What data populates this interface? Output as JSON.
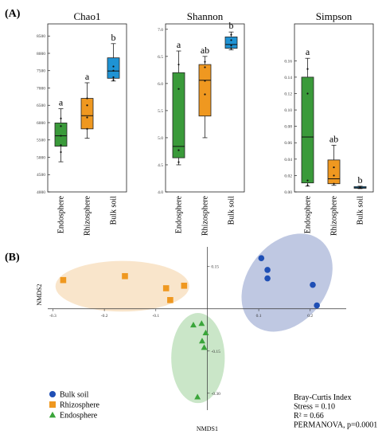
{
  "panel_a_label": "(A)",
  "panel_b_label": "(B)",
  "colors": {
    "endosphere": "#3a9a3a",
    "rhizosphere": "#ef9820",
    "bulk": "#1f93d4"
  },
  "chart_data": [
    {
      "type": "box",
      "title": "Chao1",
      "categories": [
        "Endosphere",
        "Rhizosphere",
        "Bulk soil"
      ],
      "yticks": [
        4000,
        4500,
        5000,
        5500,
        6000,
        6500,
        7000,
        7500,
        8000,
        8500
      ],
      "ylim": [
        4000,
        8850
      ],
      "boxes": [
        {
          "whisker_low": 4870,
          "q1": 5320,
          "median": 5620,
          "q3": 5990,
          "whisker_high": 6400,
          "points": [
            5150,
            5350,
            5620,
            5900,
            6120
          ],
          "letter": "a",
          "color": "#3a9a3a"
        },
        {
          "whisker_low": 5550,
          "q1": 5820,
          "median": 6200,
          "q3": 6700,
          "whisker_high": 7150,
          "points": [
            5820,
            6150,
            6500,
            6700
          ],
          "letter": "a",
          "color": "#ef9820"
        },
        {
          "whisker_low": 7200,
          "q1": 7280,
          "median": 7490,
          "q3": 7870,
          "whisker_high": 8280,
          "points": [
            7230,
            7310,
            7500,
            7620
          ],
          "letter": "b",
          "color": "#1f93d4"
        }
      ]
    },
    {
      "type": "box",
      "title": "Shannon",
      "categories": [
        "Endosphere",
        "Rhizosphere",
        "Bulk soil"
      ],
      "yticks": [
        4.0,
        4.5,
        5.0,
        5.5,
        6.0,
        6.5,
        7.0
      ],
      "ylim": [
        4.0,
        7.1
      ],
      "boxes": [
        {
          "whisker_low": 4.5,
          "q1": 4.63,
          "median": 4.84,
          "q3": 6.2,
          "whisker_high": 6.6,
          "points": [
            4.55,
            4.77,
            5.9,
            6.35
          ],
          "letter": "a",
          "color": "#3a9a3a"
        },
        {
          "whisker_low": 5.0,
          "q1": 5.4,
          "median": 6.06,
          "q3": 6.35,
          "whisker_high": 6.5,
          "points": [
            5.8,
            6.05,
            6.3,
            6.4
          ],
          "letter": "ab",
          "color": "#ef9820"
        },
        {
          "whisker_low": 6.62,
          "q1": 6.65,
          "median": 6.72,
          "q3": 6.86,
          "whisker_high": 6.95,
          "points": [
            6.65,
            6.7,
            6.8,
            6.9
          ],
          "letter": "b",
          "color": "#1f93d4"
        }
      ]
    },
    {
      "type": "box",
      "title": "Simpson",
      "categories": [
        "Endosphere",
        "Rhizosphere",
        "Bulk soil"
      ],
      "yticks": [
        0.0,
        0.02,
        0.04,
        0.06,
        0.08,
        0.1,
        0.12,
        0.14,
        0.16
      ],
      "ylim": [
        0.0,
        0.205
      ],
      "boxes": [
        {
          "whisker_low": 0.007,
          "q1": 0.011,
          "median": 0.067,
          "q3": 0.14,
          "whisker_high": 0.163,
          "points": [
            0.008,
            0.014,
            0.12,
            0.15
          ],
          "letter": "a",
          "color": "#3a9a3a"
        },
        {
          "whisker_low": 0.008,
          "q1": 0.01,
          "median": 0.016,
          "q3": 0.039,
          "whisker_high": 0.057,
          "points": [
            0.01,
            0.02,
            0.03
          ],
          "letter": "ab",
          "color": "#ef9820"
        },
        {
          "whisker_low": 0.004,
          "q1": 0.0045,
          "median": 0.005,
          "q3": 0.0065,
          "whisker_high": 0.007,
          "points": [
            0.005,
            0.006
          ],
          "letter": "b",
          "color": "#1f93d4"
        }
      ]
    },
    {
      "type": "scatter",
      "xlabel": "NMDS1",
      "ylabel": "NMDS2",
      "xticks": [
        -0.3,
        -0.2,
        -0.1,
        0.1,
        0.2
      ],
      "yticks": [
        0.15,
        -0.15,
        -0.3
      ],
      "xlim": [
        -0.31,
        0.27
      ],
      "ylim": [
        -0.36,
        0.22
      ],
      "series": [
        {
          "name": "Bulk soil",
          "marker": "circle",
          "color": "#1f4fb5",
          "points": [
            [
              0.105,
              0.18
            ],
            [
              0.117,
              0.138
            ],
            [
              0.117,
              0.108
            ],
            [
              0.205,
              0.085
            ],
            [
              0.213,
              0.012
            ]
          ],
          "ellipse": {
            "cx": 0.155,
            "cy": 0.093,
            "rx": 0.105,
            "ry": 0.14,
            "angle_deg": -52,
            "fill": "#aab6d8"
          }
        },
        {
          "name": "Rhizosphere",
          "marker": "square",
          "color": "#ef9820",
          "points": [
            [
              -0.28,
              0.102
            ],
            [
              -0.16,
              0.116
            ],
            [
              -0.08,
              0.073
            ],
            [
              -0.072,
              0.031
            ],
            [
              -0.045,
              0.082
            ]
          ],
          "ellipse": {
            "cx": -0.165,
            "cy": 0.08,
            "rx": 0.13,
            "ry": 0.09,
            "angle_deg": 0,
            "fill": "#f7dcb9"
          }
        },
        {
          "name": "Endosphere",
          "marker": "triangle",
          "color": "#3aa53a",
          "points": [
            [
              -0.027,
              -0.057
            ],
            [
              -0.011,
              -0.052
            ],
            [
              -0.01,
              -0.114
            ],
            [
              -0.006,
              -0.137
            ],
            [
              -0.003,
              -0.085
            ],
            [
              -0.019,
              -0.313
            ]
          ],
          "ellipse": {
            "cx": -0.018,
            "cy": -0.175,
            "rx": 0.052,
            "ry": 0.16,
            "angle_deg": 0,
            "fill": "#b8deb6"
          }
        }
      ],
      "stats": [
        "Bray-Curtis Index",
        "Stress = 0.10",
        "R² = 0.66",
        "PERMANOVA, p=0.0001"
      ]
    }
  ]
}
